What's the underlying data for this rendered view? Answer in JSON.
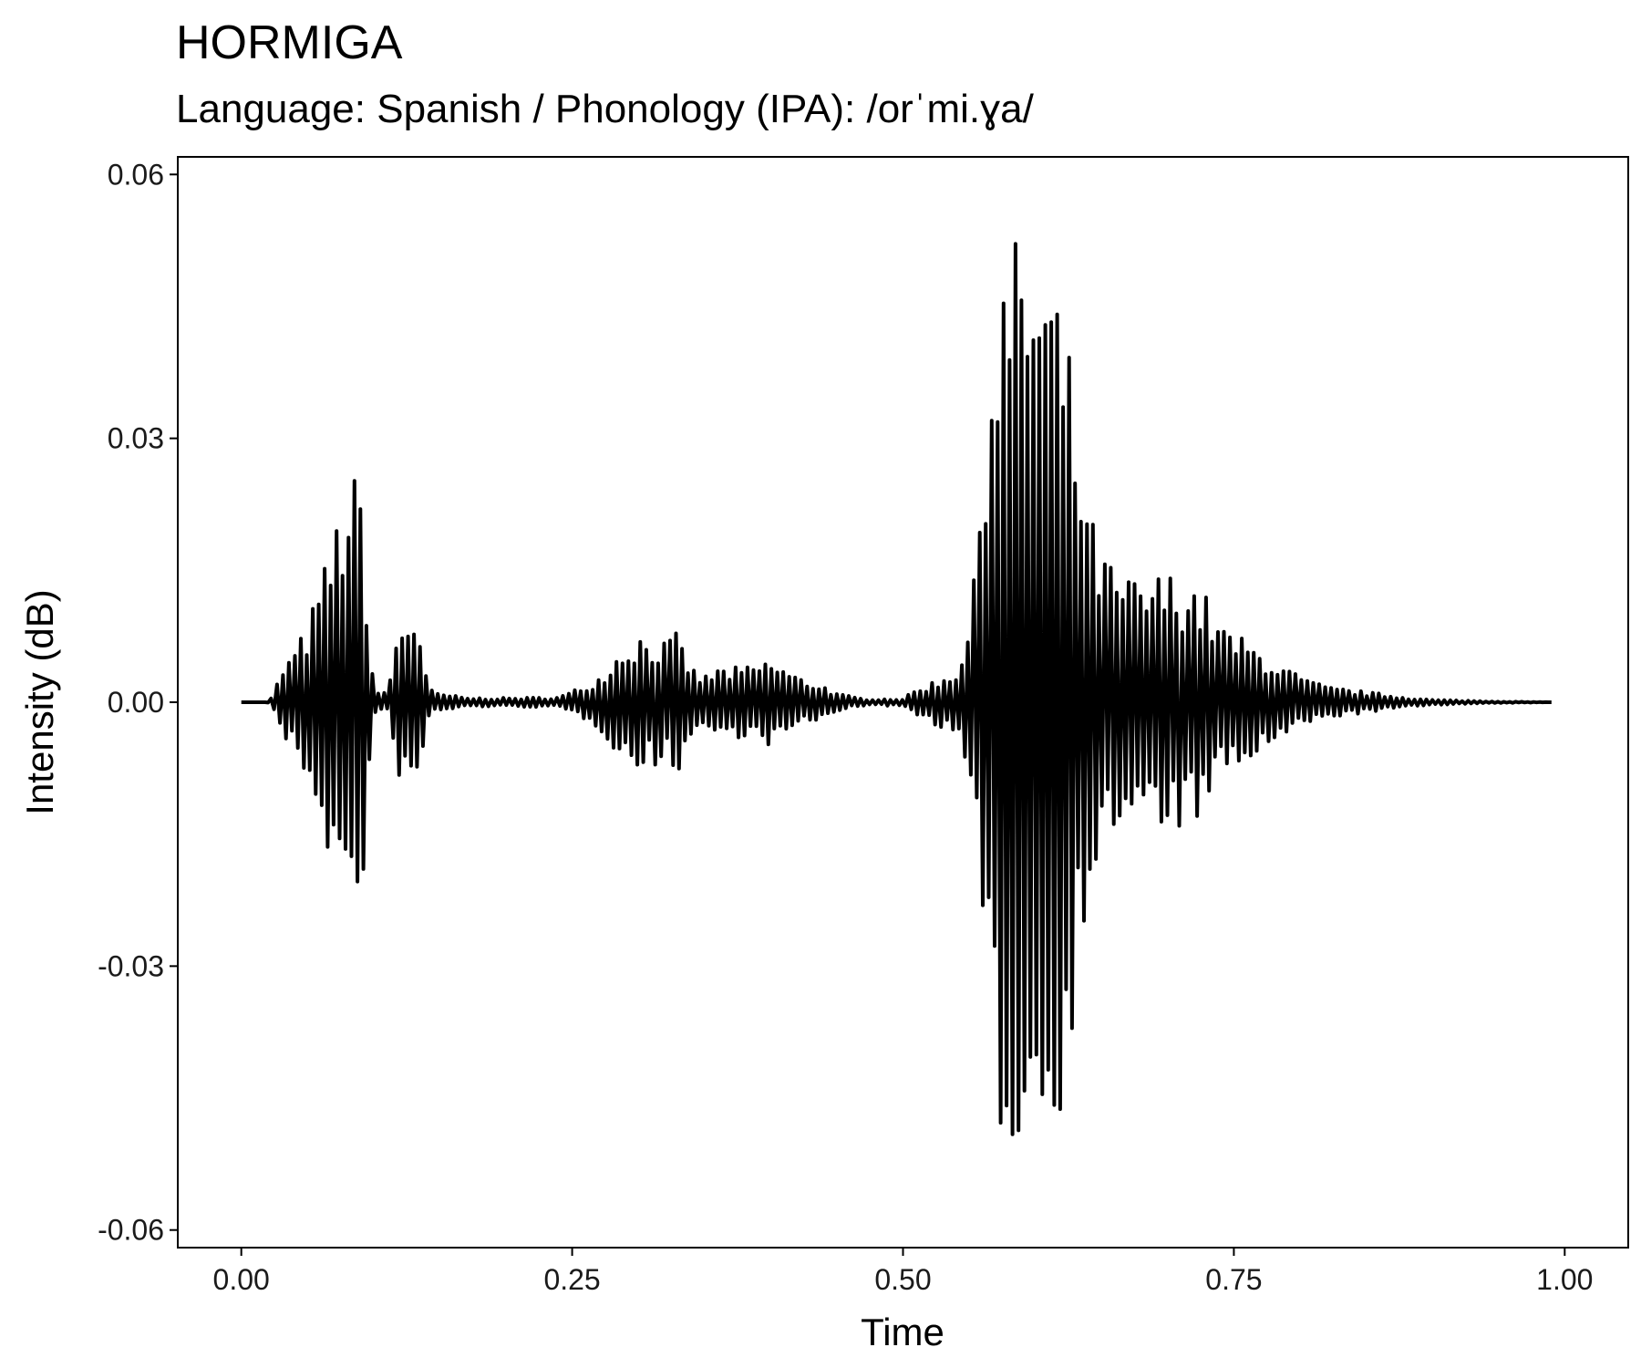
{
  "chart_data": {
    "type": "line",
    "title": "HORMIGA",
    "subtitle": "Language: Spanish / Phonology (IPA): /orˈmi.ɣa/",
    "xlabel": "Time",
    "ylabel": "Intensity (dB)",
    "xlim": [
      -0.048,
      1.048
    ],
    "ylim": [
      -0.062,
      0.062
    ],
    "x_ticks": [
      0.0,
      0.25,
      0.5,
      0.75,
      1.0
    ],
    "x_tick_labels": [
      "0.00",
      "0.25",
      "0.50",
      "0.75",
      "1.00"
    ],
    "y_ticks": [
      0.06,
      0.03,
      0.0,
      -0.03,
      -0.06
    ],
    "y_tick_labels": [
      "0.06",
      "0.03",
      "0.00",
      "-0.03",
      "-0.06"
    ],
    "grid": false,
    "legend": "none",
    "line_color": "#000000",
    "series": [
      {
        "x_range": [
          0.0,
          0.99
        ],
        "envelope": {
          "time": [
            0.0,
            0.02,
            0.025,
            0.03,
            0.04,
            0.05,
            0.06,
            0.07,
            0.08,
            0.085,
            0.09,
            0.095,
            0.1,
            0.11,
            0.115,
            0.12,
            0.13,
            0.135,
            0.14,
            0.145,
            0.15,
            0.16,
            0.17,
            0.2,
            0.24,
            0.26,
            0.27,
            0.28,
            0.29,
            0.3,
            0.32,
            0.33,
            0.34,
            0.35,
            0.36,
            0.38,
            0.4,
            0.41,
            0.42,
            0.44,
            0.45,
            0.47,
            0.48,
            0.5,
            0.51,
            0.53,
            0.54,
            0.55,
            0.555,
            0.56,
            0.57,
            0.58,
            0.59,
            0.595,
            0.6,
            0.61,
            0.62,
            0.63,
            0.64,
            0.65,
            0.66,
            0.68,
            0.7,
            0.72,
            0.73,
            0.74,
            0.76,
            0.78,
            0.8,
            0.82,
            0.85,
            0.88,
            0.9,
            0.95,
            0.99
          ],
          "amplitude": [
            0.0,
            0.0,
            0.001,
            0.004,
            0.006,
            0.009,
            0.014,
            0.02,
            0.025,
            0.026,
            0.025,
            0.014,
            0.0015,
            0.001,
            0.006,
            0.009,
            0.011,
            0.009,
            0.003,
            0.001,
            0.001,
            0.0008,
            0.0005,
            0.0005,
            0.0006,
            0.002,
            0.003,
            0.005,
            0.007,
            0.008,
            0.007,
            0.008,
            0.004,
            0.003,
            0.004,
            0.004,
            0.005,
            0.004,
            0.003,
            0.002,
            0.001,
            0.0004,
            0.0004,
            0.0004,
            0.0015,
            0.003,
            0.004,
            0.009,
            0.016,
            0.033,
            0.048,
            0.052,
            0.054,
            0.056,
            0.052,
            0.05,
            0.046,
            0.035,
            0.022,
            0.018,
            0.015,
            0.014,
            0.015,
            0.014,
            0.012,
            0.009,
            0.007,
            0.005,
            0.003,
            0.0018,
            0.0012,
            0.0006,
            0.0003,
            0.0001,
            0.0
          ]
        },
        "cycle_period": 0.0045
      }
    ]
  }
}
